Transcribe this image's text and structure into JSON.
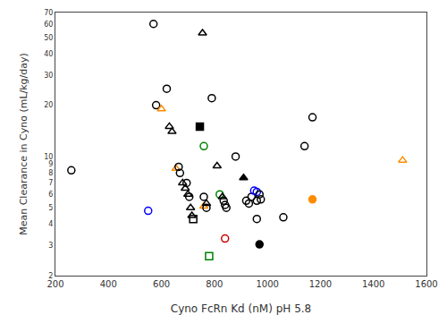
{
  "chart_data": {
    "type": "scatter",
    "xlabel": "Cyno FcRn Kd (nM) pH 5.8",
    "ylabel": "Mean Clearance in Cyno (mL/kg/day)",
    "log": "y",
    "grid": false,
    "xlim": [
      200,
      1600
    ],
    "ylim": [
      2,
      70
    ],
    "xticks": [
      200,
      400,
      600,
      800,
      1000,
      1200,
      1400,
      1600
    ],
    "yticks": [
      2,
      3,
      4,
      5,
      6,
      7,
      8,
      9,
      10,
      20,
      30,
      40,
      50,
      60,
      70
    ],
    "series": [
      {
        "x": [
          260
        ],
        "values": [
          8.3
        ],
        "color": "black",
        "marker": "circle-open"
      },
      {
        "x": [
          570
        ],
        "values": [
          60
        ],
        "color": "black",
        "marker": "circle-open"
      },
      {
        "x": [
          580
        ],
        "values": [
          20
        ],
        "color": "black",
        "marker": "circle-open"
      },
      {
        "x": [
          600
        ],
        "values": [
          19
        ],
        "color": "#FF8C00",
        "marker": "triangle-up-open"
      },
      {
        "x": [
          620
        ],
        "values": [
          25
        ],
        "color": "black",
        "marker": "circle-open"
      },
      {
        "x": [
          630
        ],
        "values": [
          15
        ],
        "color": "black",
        "marker": "triangle-up-open"
      },
      {
        "x": [
          640
        ],
        "values": [
          14
        ],
        "color": "black",
        "marker": "triangle-up-open"
      },
      {
        "x": [
          655
        ],
        "values": [
          8.5
        ],
        "color": "#FF8C00",
        "marker": "triangle-up-open"
      },
      {
        "x": [
          665
        ],
        "values": [
          8.7
        ],
        "color": "black",
        "marker": "circle-open"
      },
      {
        "x": [
          670
        ],
        "values": [
          8.0
        ],
        "color": "black",
        "marker": "circle-open"
      },
      {
        "x": [
          680
        ],
        "values": [
          7.0
        ],
        "color": "black",
        "marker": "triangle-up-open"
      },
      {
        "x": [
          690
        ],
        "values": [
          6.5
        ],
        "color": "black",
        "marker": "triangle-up-open"
      },
      {
        "x": [
          695
        ],
        "values": [
          7.0
        ],
        "color": "black",
        "marker": "circle-open"
      },
      {
        "x": [
          700
        ],
        "values": [
          6.0
        ],
        "color": "black",
        "marker": "triangle-up-open"
      },
      {
        "x": [
          705
        ],
        "values": [
          5.8
        ],
        "color": "black",
        "marker": "circle-open"
      },
      {
        "x": [
          710
        ],
        "values": [
          5.0
        ],
        "color": "black",
        "marker": "triangle-up-open"
      },
      {
        "x": [
          715
        ],
        "values": [
          4.5
        ],
        "color": "black",
        "marker": "triangle-up-open"
      },
      {
        "x": [
          720
        ],
        "values": [
          4.3
        ],
        "color": "black",
        "marker": "square-open"
      },
      {
        "x": [
          550
        ],
        "values": [
          4.8
        ],
        "color": "#0000FF",
        "marker": "circle-open"
      },
      {
        "x": [
          755
        ],
        "values": [
          53
        ],
        "color": "black",
        "marker": "triangle-up-open"
      },
      {
        "x": [
          745
        ],
        "values": [
          15
        ],
        "color": "black",
        "marker": "square"
      },
      {
        "x": [
          760
        ],
        "values": [
          11.5
        ],
        "color": "#008000",
        "marker": "circle-open"
      },
      {
        "x": [
          760
        ],
        "values": [
          5.8
        ],
        "color": "black",
        "marker": "circle-open"
      },
      {
        "x": [
          760
        ],
        "values": [
          5.1
        ],
        "color": "#FF8C00",
        "marker": "triangle-up-open"
      },
      {
        "x": [
          770
        ],
        "values": [
          5.0
        ],
        "color": "black",
        "marker": "circle-open"
      },
      {
        "x": [
          770
        ],
        "values": [
          5.3
        ],
        "color": "black",
        "marker": "triangle-up-open"
      },
      {
        "x": [
          790
        ],
        "values": [
          22
        ],
        "color": "black",
        "marker": "circle-open"
      },
      {
        "x": [
          810
        ],
        "values": [
          8.8
        ],
        "color": "black",
        "marker": "triangle-up-open"
      },
      {
        "x": [
          820
        ],
        "values": [
          6.0
        ],
        "color": "#008000",
        "marker": "circle-open"
      },
      {
        "x": [
          830
        ],
        "values": [
          5.8
        ],
        "color": "black",
        "marker": "triangle-up-open"
      },
      {
        "x": [
          835
        ],
        "values": [
          5.5
        ],
        "color": "black",
        "marker": "circle-open"
      },
      {
        "x": [
          840
        ],
        "values": [
          5.2
        ],
        "color": "black",
        "marker": "circle-open"
      },
      {
        "x": [
          845
        ],
        "values": [
          5.0
        ],
        "color": "black",
        "marker": "circle-open"
      },
      {
        "x": [
          840
        ],
        "values": [
          3.3
        ],
        "color": "#CC0000",
        "marker": "circle-open"
      },
      {
        "x": [
          780
        ],
        "values": [
          2.6
        ],
        "color": "#008000",
        "marker": "square-open"
      },
      {
        "x": [
          880
        ],
        "values": [
          10.0
        ],
        "color": "black",
        "marker": "circle-open"
      },
      {
        "x": [
          910
        ],
        "values": [
          7.5
        ],
        "color": "black",
        "marker": "triangle-up"
      },
      {
        "x": [
          920
        ],
        "values": [
          5.5
        ],
        "color": "black",
        "marker": "circle-open"
      },
      {
        "x": [
          930
        ],
        "values": [
          5.3
        ],
        "color": "black",
        "marker": "circle-open"
      },
      {
        "x": [
          940
        ],
        "values": [
          5.8
        ],
        "color": "black",
        "marker": "circle-open"
      },
      {
        "x": [
          950
        ],
        "values": [
          6.3
        ],
        "color": "#0000FF",
        "marker": "circle-open"
      },
      {
        "x": [
          960
        ],
        "values": [
          6.2
        ],
        "color": "#0000FF",
        "marker": "circle-open"
      },
      {
        "x": [
          960
        ],
        "values": [
          5.5
        ],
        "color": "black",
        "marker": "circle-open"
      },
      {
        "x": [
          970
        ],
        "values": [
          6.0
        ],
        "color": "black",
        "marker": "circle-open"
      },
      {
        "x": [
          975
        ],
        "values": [
          5.6
        ],
        "color": "black",
        "marker": "circle-open"
      },
      {
        "x": [
          960
        ],
        "values": [
          4.3
        ],
        "color": "black",
        "marker": "circle-open"
      },
      {
        "x": [
          970
        ],
        "values": [
          3.05
        ],
        "color": "black",
        "marker": "circle"
      },
      {
        "x": [
          1060
        ],
        "values": [
          4.4
        ],
        "color": "black",
        "marker": "circle-open"
      },
      {
        "x": [
          1140
        ],
        "values": [
          11.5
        ],
        "color": "black",
        "marker": "circle-open"
      },
      {
        "x": [
          1170
        ],
        "values": [
          17
        ],
        "color": "black",
        "marker": "circle-open"
      },
      {
        "x": [
          1170
        ],
        "values": [
          5.6
        ],
        "color": "#FF8C00",
        "marker": "circle"
      },
      {
        "x": [
          1510
        ],
        "values": [
          9.5
        ],
        "color": "#FF8C00",
        "marker": "triangle-up-open"
      }
    ]
  }
}
